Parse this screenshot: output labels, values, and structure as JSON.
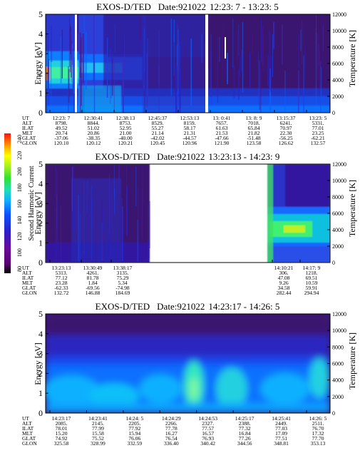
{
  "colorbar": {
    "label": "Second Harmonic Current",
    "ticks": [
      "80",
      "100",
      "120",
      "140",
      "160",
      "180",
      "200",
      "220",
      "240"
    ],
    "colors": [
      "#000000",
      "#5a0070",
      "#6a0a9a",
      "#2a20c8",
      "#0a40ff",
      "#0a80ff",
      "#10c8ff",
      "#20e0b0",
      "#30e030",
      "#a0f020",
      "#ffff00",
      "#ffb000",
      "#ff6000",
      "#ff1010"
    ]
  },
  "panels": [
    {
      "title_prefix": "EXOS-D/TED",
      "title_date": "Date:921022",
      "title_time": "12:23: 7 - 13:23: 5",
      "ylabel": "Energy [eV]",
      "y2label": "Temperature [K]",
      "eph": {
        "labels": [
          "UT",
          "ALT",
          "ILAT",
          "MLT",
          "GLAT",
          "GLON"
        ],
        "columns": [
          [
            "12:23: 7",
            "8798.",
            "49.52",
            "20.74",
            "-37.06",
            "120.10"
          ],
          [
            "12:30:41",
            "8844.",
            "51.02",
            "20.86",
            "-38.35",
            "120.12"
          ],
          [
            "12:38:13",
            "8753.",
            "52.95",
            "21.00",
            "-40.00",
            "120.21"
          ],
          [
            "12:45:37",
            "8529.",
            "55.27",
            "21.14",
            "-42.02",
            "120.45"
          ],
          [
            "12:53:13",
            "8159.",
            "58.17",
            "21.31",
            "-44.57",
            "120.96"
          ],
          [
            "13: 0:41",
            "7657.",
            "61.63",
            "21.53",
            "-47.66",
            "121.90"
          ],
          [
            "13: 8: 9",
            "7018.",
            "65.84",
            "21.82",
            "-51.48",
            "123.58"
          ],
          [
            "13:15:37",
            "6241.",
            "70.97",
            "22.30",
            "-56.25",
            "126.62"
          ],
          [
            "13:23: 5",
            "5331.",
            "77.01",
            "23.25",
            "-62.21",
            "132.57"
          ]
        ]
      }
    },
    {
      "title_prefix": "EXOS-D/TED",
      "title_date": "Date:921022",
      "title_time": "13:23:13 - 14:23: 9",
      "ylabel": "Energy [eV]",
      "y2label": "Temperature [K]",
      "eph": {
        "labels": [
          "UT",
          "ALT",
          "ILAT",
          "MLT",
          "GLAT",
          "GLON"
        ],
        "columns": [
          [
            "13:23:13",
            "5313.",
            "77.12",
            "23.28",
            "-62.33",
            "132.72"
          ],
          [
            "13:30:49",
            "4261.",
            "81.78",
            "1.84",
            "-69.56",
            "146.88"
          ],
          [
            "13:38:17",
            "3135.",
            "75.29",
            "5.34",
            "-74.98",
            "184.69"
          ],
          [
            "14:10:21",
            "306.",
            "47.08",
            "9.26",
            "34.58",
            "282.44"
          ],
          [
            "14:17: 9",
            "1218.",
            "69.51",
            "10.59",
            "59.91",
            "294.94"
          ]
        ]
      }
    },
    {
      "title_prefix": "EXOS-D/TED",
      "title_date": "Date:921022",
      "title_time": "14:23:17 - 14:26: 5",
      "ylabel": "Energy [eV]",
      "y2label": "Temperature [K]",
      "eph": {
        "labels": [
          "UT",
          "ALT",
          "ILAT",
          "MLT",
          "GLAT",
          "GLON"
        ],
        "columns": [
          [
            "14:23:17",
            "2085.",
            "78.01",
            "15.20",
            "74.92",
            "325.58"
          ],
          [
            "14:23:41",
            "2145.",
            "77.99",
            "15.58",
            "75.52",
            "328.99"
          ],
          [
            "14:24: 5",
            "2205.",
            "77.92",
            "15.94",
            "76.06",
            "332.59"
          ],
          [
            "14:24:29",
            "2266.",
            "77.78",
            "16.27",
            "76.54",
            "336.40"
          ],
          [
            "14:24:53",
            "2327.",
            "77.57",
            "16.57",
            "76.93",
            "340.42"
          ],
          [
            "14:25:17",
            "2388.",
            "77.32",
            "16.84",
            "77.26",
            "344.56"
          ],
          [
            "14:25:41",
            "2449.",
            "77.03",
            "17.09",
            "77.51",
            "348.81"
          ],
          [
            "14:26: 5",
            "2511.",
            "76.70",
            "17.32",
            "77.70",
            "353.13"
          ]
        ]
      }
    }
  ],
  "chart_data": [
    {
      "type": "heatmap",
      "title": "EXOS-D/TED Date:921022 12:23: 7 - 13:23: 5",
      "ylabel": "Energy [eV]",
      "y2label": "Temperature [K]",
      "ylim": [
        0,
        5
      ],
      "y2lim": [
        0,
        12000
      ],
      "yticks": [
        "0",
        "1",
        "2",
        "3",
        "4",
        "5"
      ],
      "y2ticks": [
        "0",
        "2000",
        "4000",
        "6000",
        "8000",
        "10000",
        "12000"
      ],
      "x_ticks": [
        "12:23: 7",
        "12:30:41",
        "12:38:13",
        "12:45:37",
        "12:53:13",
        "13: 0:41",
        "13: 8: 9",
        "13:15:37",
        "13:23: 5"
      ],
      "data_gaps": [
        [
          0.155,
          0.163
        ],
        [
          0.722,
          0.732
        ]
      ]
    },
    {
      "type": "heatmap",
      "title": "EXOS-D/TED Date:921022 13:23:13 - 14:23: 9",
      "ylabel": "Energy [eV]",
      "y2label": "Temperature [K]",
      "ylim": [
        0,
        5
      ],
      "y2lim": [
        0,
        12000
      ],
      "yticks": [
        "0",
        "1",
        "2",
        "3",
        "4",
        "5"
      ],
      "y2ticks": [
        "0",
        "2000",
        "4000",
        "6000",
        "8000",
        "10000",
        "12000"
      ],
      "x_ticks": [
        "13:23:13",
        "13:30:49",
        "13:38:17",
        "14:10:21",
        "14:17: 9"
      ],
      "data_gaps": [
        [
          0.418,
          0.745
        ]
      ]
    },
    {
      "type": "heatmap",
      "title": "EXOS-D/TED Date:921022 14:23:17 - 14:26: 5",
      "ylabel": "Energy [eV]",
      "y2label": "Temperature [K]",
      "ylim": [
        0,
        5
      ],
      "y2lim": [
        0,
        12000
      ],
      "yticks": [
        "0",
        "1",
        "2",
        "3",
        "4",
        "5"
      ],
      "y2ticks": [
        "0",
        "2000",
        "4000",
        "6000",
        "8000",
        "10000",
        "12000"
      ],
      "x_ticks": [
        "14:23:17",
        "14:23:41",
        "14:24: 5",
        "14:24:29",
        "14:24:53",
        "14:25:17",
        "14:25:41",
        "14:26: 5"
      ],
      "data_gaps": []
    }
  ]
}
